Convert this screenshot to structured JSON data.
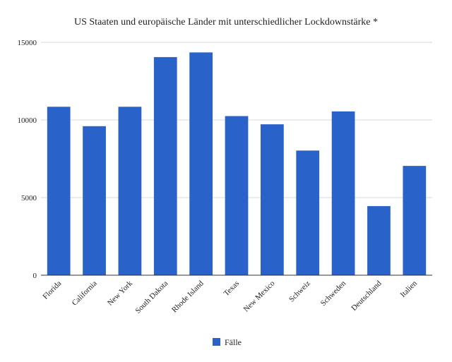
{
  "chart_data": {
    "type": "bar",
    "title": "US Staaten und europäische Länder mit unterschiedlicher Lockdownstärke *",
    "xlabel": "",
    "ylabel": "",
    "categories": [
      "Florida",
      "California",
      "New York",
      "South Dakota",
      "Rhode Island",
      "Texas",
      "New Mexico",
      "Schweiz",
      "Schweden",
      "Deutschland",
      "Italien"
    ],
    "series": [
      {
        "name": "Fälle",
        "color": "#2962c9",
        "values": [
          10850,
          9600,
          10850,
          14050,
          14350,
          10250,
          9720,
          8030,
          10550,
          4450,
          7040
        ]
      }
    ],
    "ylim": [
      0,
      15000
    ],
    "yticks": [
      0,
      5000,
      10000,
      15000
    ],
    "grid": true,
    "legend_position": "bottom"
  }
}
